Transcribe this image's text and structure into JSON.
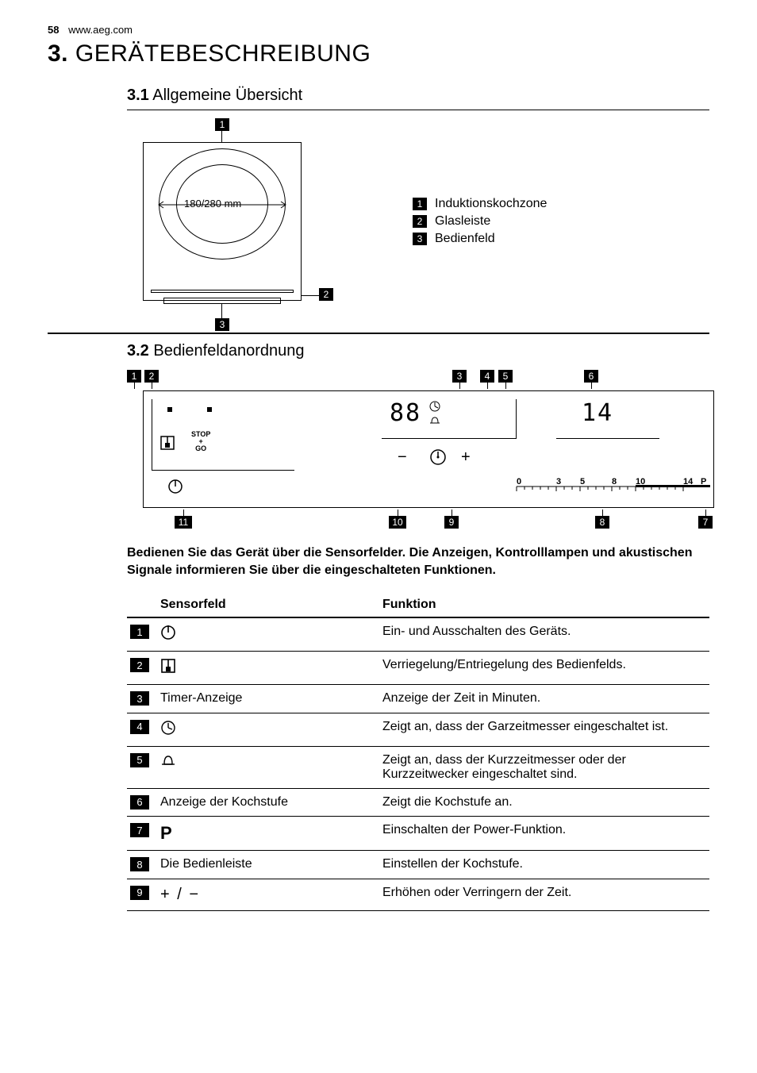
{
  "header": {
    "page": "58",
    "site": "www.aeg.com"
  },
  "chapter": {
    "num": "3.",
    "title": "GERÄTEBESCHREIBUNG"
  },
  "sec31": {
    "num": "3.1",
    "title": "Allgemeine Übersicht",
    "hob": {
      "dim_label": "180/280 mm",
      "callouts": [
        "1",
        "2",
        "3"
      ]
    },
    "legend": [
      {
        "n": "1",
        "text": "Induktionskochzone"
      },
      {
        "n": "2",
        "text": "Glasleiste"
      },
      {
        "n": "3",
        "text": "Bedienfeld"
      }
    ]
  },
  "sec32": {
    "num": "3.2",
    "title": "Bedienfeldanordnung",
    "top_callouts": [
      "1",
      "2",
      "3",
      "4",
      "5",
      "6"
    ],
    "bottom_callouts": [
      "11",
      "10",
      "9",
      "8",
      "7"
    ],
    "display_digits": "88",
    "heat_display": "14",
    "stop_go": "STOP\n+\nGO",
    "scale_labels": [
      "0",
      "3",
      "5",
      "8",
      "10",
      "14",
      "P"
    ]
  },
  "instruction": "Bedienen Sie das Gerät über die Sensorfelder. Die Anzeigen, Kontrolllampen und akustischen Signale informieren Sie über die eingeschalteten Funktionen.",
  "table": {
    "headers": {
      "sensor": "Sensorfeld",
      "func": "Funktion"
    },
    "rows": [
      {
        "n": "1",
        "sensor_type": "icon",
        "sensor": "power",
        "func": "Ein- und Ausschalten des Geräts."
      },
      {
        "n": "2",
        "sensor_type": "icon",
        "sensor": "lock",
        "func": "Verriegelung/Entriegelung des Bedienfelds."
      },
      {
        "n": "3",
        "sensor_type": "text",
        "sensor": "Timer-Anzeige",
        "func": "Anzeige der Zeit in Minuten."
      },
      {
        "n": "4",
        "sensor_type": "icon",
        "sensor": "clock",
        "func": "Zeigt an, dass der Garzeitmesser eingeschaltet ist."
      },
      {
        "n": "5",
        "sensor_type": "icon",
        "sensor": "bell",
        "func": "Zeigt an, dass der Kurzzeitmesser oder der Kurzzeitwecker eingeschaltet sind."
      },
      {
        "n": "6",
        "sensor_type": "text",
        "sensor": "Anzeige der Kochstufe",
        "func": "Zeigt die Kochstufe an."
      },
      {
        "n": "7",
        "sensor_type": "icon",
        "sensor": "P",
        "func": "Einschalten der Power-Funktion."
      },
      {
        "n": "8",
        "sensor_type": "text",
        "sensor": "Die Bedienleiste",
        "func": "Einstellen der Kochstufe."
      },
      {
        "n": "9",
        "sensor_type": "icon",
        "sensor": "plusminus",
        "func": "Erhöhen oder Verringern der Zeit."
      }
    ]
  }
}
